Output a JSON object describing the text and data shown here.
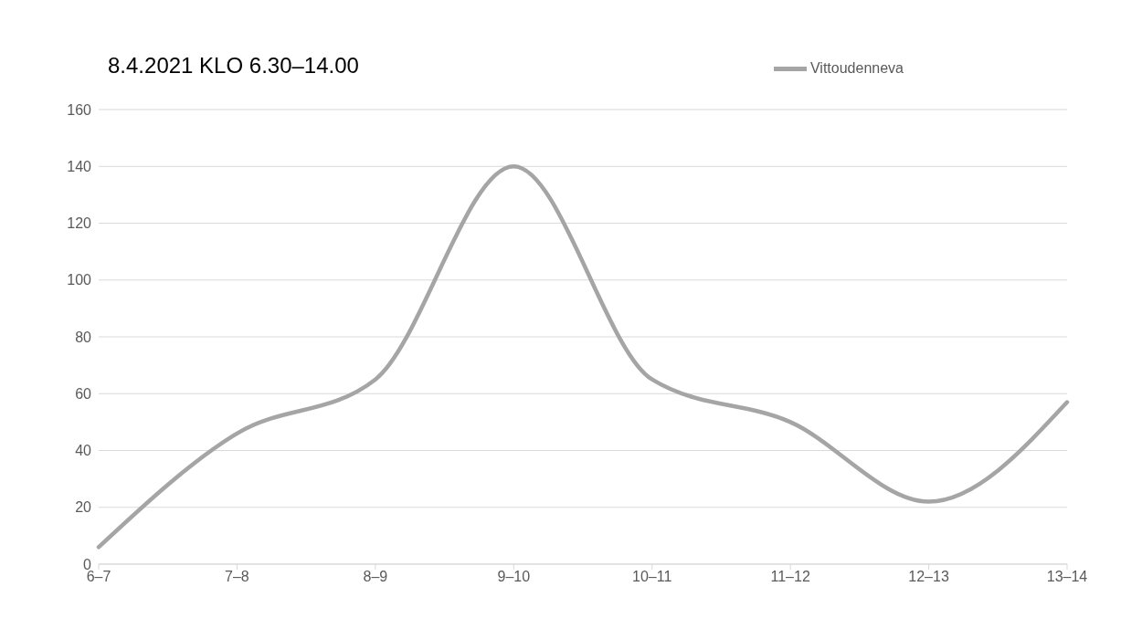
{
  "chart_data": {
    "type": "line",
    "title": "8.4.2021 KLO 6.30–14.00",
    "categories": [
      "6–7",
      "7–8",
      "8–9",
      "9–10",
      "10–11",
      "11–12",
      "12–13",
      "13–14"
    ],
    "series": [
      {
        "name": "Vittoudenneva",
        "color": "#a5a5a5",
        "values": [
          6,
          46,
          65,
          140,
          65,
          50,
          22,
          57
        ]
      }
    ],
    "ylim": [
      0,
      160
    ],
    "yticks": [
      0,
      20,
      40,
      60,
      80,
      100,
      120,
      140,
      160
    ],
    "grid": "y",
    "legend": "top right",
    "marker": "none",
    "line_style": "solid"
  }
}
